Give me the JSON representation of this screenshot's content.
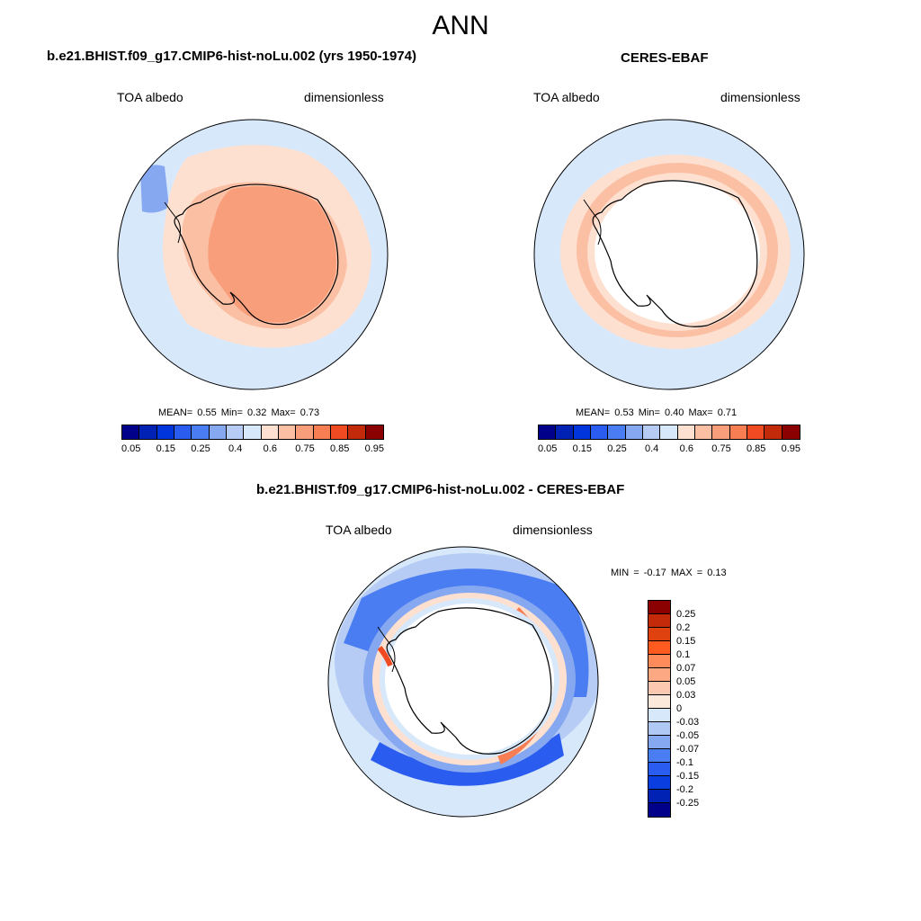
{
  "title": "ANN",
  "panels": {
    "model": {
      "title": "b.e21.BHIST.f09_g17.CMIP6-hist-noLu.002 (yrs 1950-1974)",
      "left_label": "TOA albedo",
      "right_label": "dimensionless",
      "mean_label": "MEAN=",
      "mean": "0.55",
      "min_label": "Min=",
      "min": "0.32",
      "max_label": "Max=",
      "max": "0.73"
    },
    "obs": {
      "title": "CERES-EBAF",
      "left_label": "TOA albedo",
      "right_label": "dimensionless",
      "mean_label": "MEAN=",
      "mean": "0.53",
      "min_label": "Min=",
      "min": "0.40",
      "max_label": "Max=",
      "max": "0.71"
    },
    "diff": {
      "title": "b.e21.BHIST.f09_g17.CMIP6-hist-noLu.002 - CERES-EBAF",
      "left_label": "TOA albedo",
      "right_label": "dimensionless",
      "min_label": "MIN =",
      "min": "-0.17",
      "max_label": "MAX =",
      "max": "0.13"
    }
  },
  "colorbar_abs": {
    "colors": [
      "#00008b",
      "#0022b4",
      "#0035dc",
      "#2a5cf0",
      "#4a7cf2",
      "#86a8f0",
      "#b6ccf4",
      "#d8e8fb",
      "#fde0d0",
      "#fbbfa4",
      "#f99e7a",
      "#f77d53",
      "#f04a22",
      "#c22a0a",
      "#8b0000"
    ],
    "tick_labels": [
      "0.05",
      "0.15",
      "0.25",
      "0.4",
      "0.6",
      "0.75",
      "0.85",
      "0.95"
    ]
  },
  "colorbar_diff": {
    "colors": [
      "#8b0000",
      "#c22a0a",
      "#e0420f",
      "#ff5a1f",
      "#ff8a5a",
      "#fca882",
      "#fcc8b0",
      "#fde8dc",
      "#d8e8fb",
      "#b0c8f4",
      "#86a8f0",
      "#4a7cf2",
      "#2a5cf0",
      "#0a3ee0",
      "#0022b4",
      "#00008b"
    ],
    "tick_labels": [
      "0.25",
      "0.2",
      "0.15",
      "0.1",
      "0.07",
      "0.05",
      "0.03",
      "0",
      "-0.03",
      "-0.05",
      "-0.07",
      "-0.1",
      "-0.15",
      "-0.2",
      "-0.25"
    ]
  },
  "colors": {
    "background_field": "#d8e8fb",
    "light_peach": "#fde0d0",
    "peach": "#fbbfa4",
    "salmon": "#f99e7a",
    "blue_mid": "#4a7cf2",
    "blue_dark": "#2a5cf0",
    "red": "#f04a22"
  }
}
